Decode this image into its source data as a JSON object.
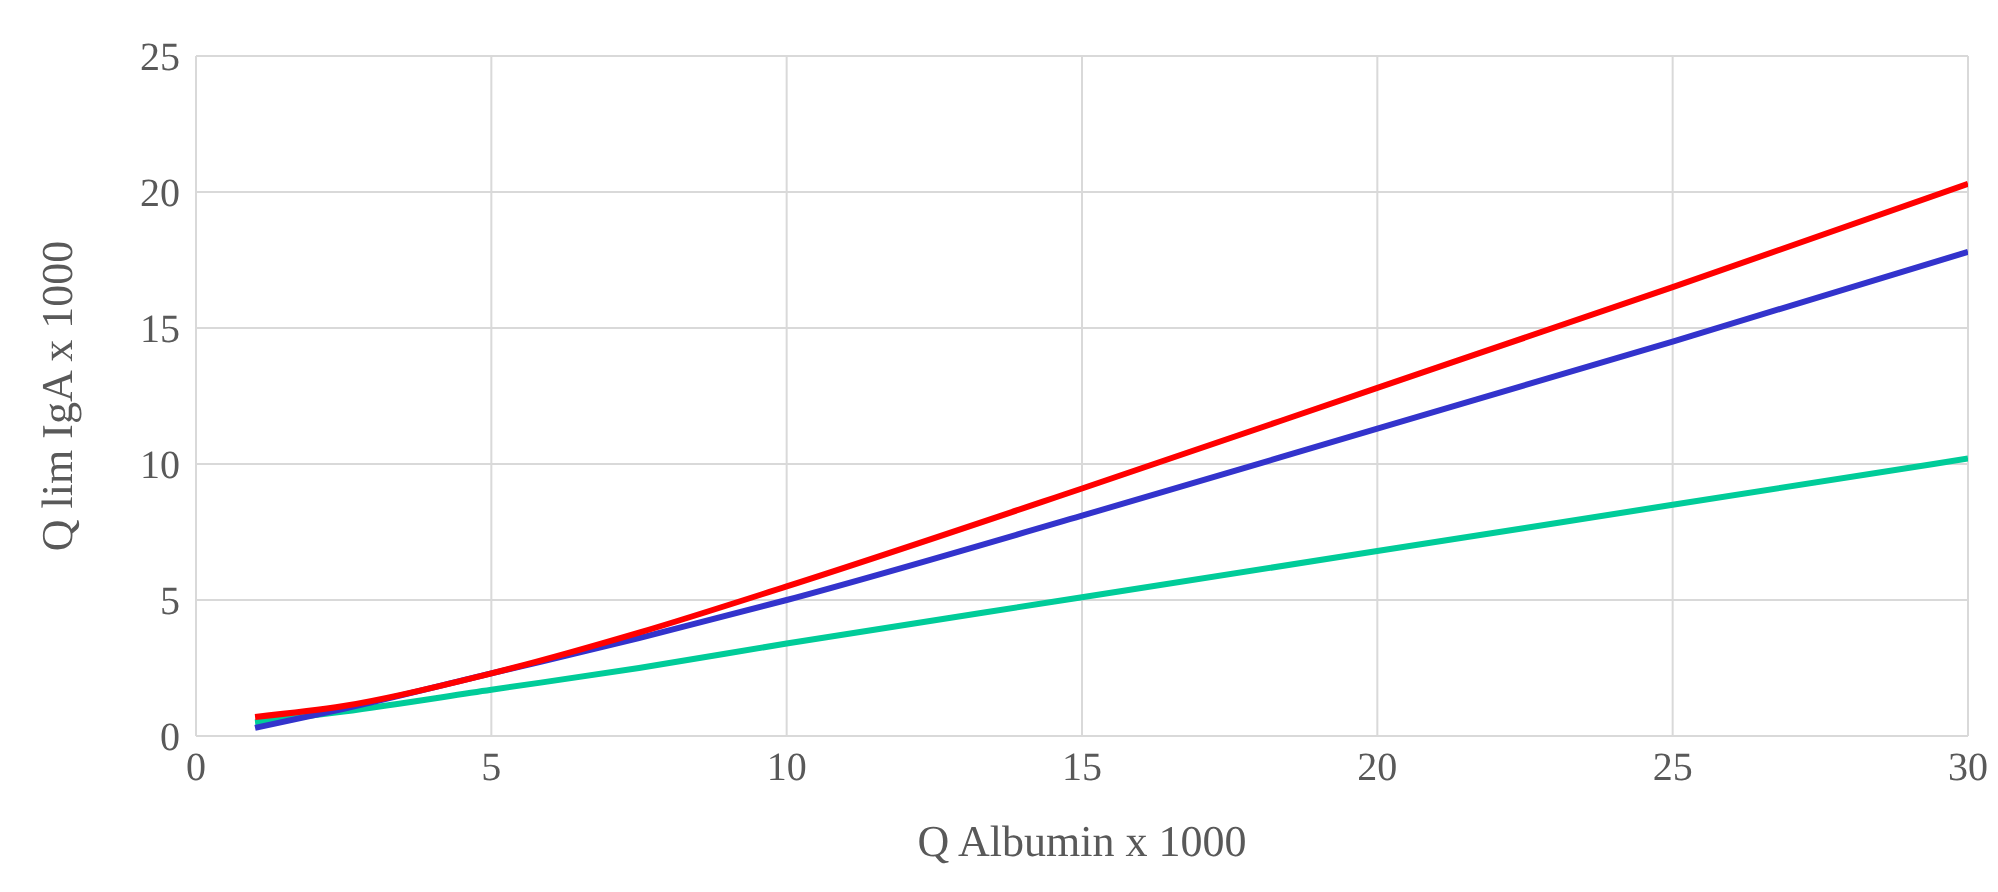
{
  "chart_data": {
    "type": "line",
    "xlabel": "Q Albumin x 1000",
    "ylabel": "Q lim IgA x 1000",
    "x": [
      1,
      2.5,
      5,
      7.5,
      10,
      15,
      20,
      25,
      30
    ],
    "series": [
      {
        "color": "#00cc99",
        "values": [
          0.5,
          0.9,
          1.7,
          2.5,
          3.4,
          5.1,
          6.8,
          8.5,
          10.2
        ]
      },
      {
        "color": "#3333cc",
        "values": [
          0.3,
          1.0,
          2.3,
          3.6,
          5.0,
          8.1,
          11.3,
          14.5,
          17.8
        ]
      },
      {
        "color": "#ff0000",
        "values": [
          0.7,
          1.1,
          2.3,
          3.8,
          5.5,
          9.1,
          12.8,
          16.5,
          20.3
        ]
      }
    ],
    "xlim": [
      0,
      30
    ],
    "xticks": [
      0,
      5,
      10,
      15,
      20,
      25,
      30
    ],
    "ylim": [
      0,
      25
    ],
    "yticks": [
      0,
      5,
      10,
      15,
      20,
      25
    ],
    "grid": true,
    "marker": "none",
    "line_style": "solid"
  }
}
